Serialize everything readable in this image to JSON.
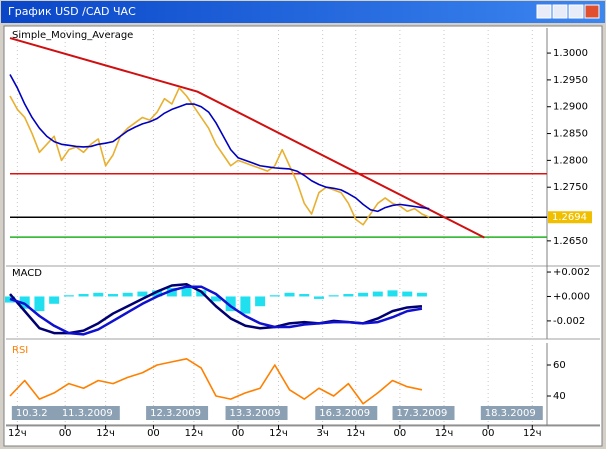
{
  "window": {
    "title": "График USD /CAD  ЧАС"
  },
  "chart_data": [
    {
      "type": "line",
      "title": "Simple_Moving_Average",
      "x": [
        0,
        2,
        4,
        6,
        8,
        10,
        12,
        14,
        16,
        18,
        20,
        22,
        24,
        26,
        28,
        30,
        32,
        34,
        36,
        38,
        40,
        42,
        44,
        46,
        48,
        50,
        52,
        54,
        56,
        58,
        60,
        62,
        64,
        66,
        68,
        70,
        72,
        74,
        76,
        78,
        80,
        82,
        84,
        86,
        88,
        90,
        92,
        94,
        96,
        98,
        100,
        102,
        104,
        106,
        108,
        110,
        112,
        114
      ],
      "series": [
        {
          "color": "#e8b030",
          "values": [
            1.292,
            1.2895,
            1.288,
            1.285,
            1.2815,
            1.283,
            1.2845,
            1.28,
            1.282,
            1.2825,
            1.2815,
            1.283,
            1.284,
            1.279,
            1.281,
            1.2845,
            1.286,
            1.287,
            1.288,
            1.2875,
            1.289,
            1.2915,
            1.2905,
            1.2935,
            1.292,
            1.29,
            1.288,
            1.286,
            1.283,
            1.281,
            1.279,
            1.28,
            1.2795,
            1.279,
            1.2785,
            1.278,
            1.279,
            1.282,
            1.279,
            1.276,
            1.272,
            1.27,
            1.274,
            1.275,
            1.2745,
            1.274,
            1.272,
            1.269,
            1.268,
            1.27,
            1.272,
            1.273,
            1.272,
            1.2715,
            1.2705,
            1.271,
            1.27,
            1.2694
          ]
        },
        {
          "color": "#0000c0",
          "values": [
            1.296,
            1.2935,
            1.2905,
            1.288,
            1.286,
            1.2845,
            1.2835,
            1.283,
            1.2828,
            1.2826,
            1.2825,
            1.2826,
            1.283,
            1.2832,
            1.2835,
            1.2845,
            1.2855,
            1.2862,
            1.2868,
            1.2872,
            1.2878,
            1.2888,
            1.2895,
            1.29,
            1.2905,
            1.2905,
            1.29,
            1.289,
            1.287,
            1.2845,
            1.282,
            1.2805,
            1.28,
            1.2795,
            1.279,
            1.2788,
            1.2786,
            1.2785,
            1.2784,
            1.278,
            1.2772,
            1.2762,
            1.2755,
            1.275,
            1.2748,
            1.2745,
            1.2738,
            1.273,
            1.2718,
            1.2708,
            1.2705,
            1.2712,
            1.2716,
            1.2718,
            1.2716,
            1.2714,
            1.2712,
            1.271
          ]
        }
      ],
      "lines": [
        {
          "color": "#d01010",
          "x": [
            0,
            51,
            129
          ],
          "values": [
            1.3028,
            1.2928,
            1.2656
          ]
        }
      ],
      "hlines": [
        {
          "value": 1.2775,
          "color": "#e01010"
        },
        {
          "value": 1.2657,
          "color": "#20b020"
        },
        {
          "value": 1.2694,
          "color": "#000000"
        }
      ],
      "current_price": 1.2694,
      "current_color": "#f0c000",
      "xlim": [
        0,
        146
      ],
      "ylim": [
        1.2605,
        1.3043
      ],
      "yticks": [
        {
          "value": 1.3,
          "label": "1.3000"
        },
        {
          "value": 1.295,
          "label": "1.2950"
        },
        {
          "value": 1.29,
          "label": "1.2900"
        },
        {
          "value": 1.285,
          "label": "1.2850"
        },
        {
          "value": 1.28,
          "label": "1.2800"
        },
        {
          "value": 1.275,
          "label": "1.2750"
        },
        {
          "value": 1.265,
          "label": "1.2650"
        }
      ]
    },
    {
      "type": "macd",
      "title": "MACD",
      "x": [
        0,
        4,
        8,
        12,
        16,
        20,
        24,
        28,
        32,
        36,
        40,
        44,
        48,
        52,
        56,
        60,
        64,
        68,
        72,
        76,
        80,
        84,
        88,
        92,
        96,
        100,
        104,
        108,
        112
      ],
      "series": [
        {
          "kind": "bar",
          "color": "#20e0f0",
          "values": [
            -0.0005,
            -0.001,
            -0.0012,
            -0.0006,
            0.0001,
            0.0002,
            0.0003,
            0.0002,
            0.0003,
            0.0004,
            0.0005,
            0.0007,
            0.0008,
            0.0005,
            -0.0004,
            -0.0012,
            -0.0014,
            -0.0008,
            0.0001,
            0.0003,
            0.0002,
            -0.0002,
            0.0001,
            0.0002,
            0.0003,
            0.0004,
            0.0005,
            0.0004,
            0.0003
          ]
        },
        {
          "kind": "line",
          "color": "#000070",
          "values": [
            0.0002,
            -0.0012,
            -0.0026,
            -0.003,
            -0.003,
            -0.0028,
            -0.0022,
            -0.0014,
            -0.0008,
            -0.0002,
            0.0004,
            0.0009,
            0.001,
            0.0004,
            -0.0008,
            -0.0018,
            -0.0024,
            -0.0026,
            -0.0025,
            -0.0022,
            -0.0021,
            -0.0022,
            -0.002,
            -0.0021,
            -0.0022,
            -0.0018,
            -0.0012,
            -0.0009,
            -0.0008
          ]
        },
        {
          "kind": "line",
          "color": "#1010d0",
          "values": [
            -0.0002,
            -0.0006,
            -0.0016,
            -0.0024,
            -0.003,
            -0.0031,
            -0.0027,
            -0.002,
            -0.0013,
            -0.0006,
            0.0,
            0.0005,
            0.0008,
            0.0008,
            0.0002,
            -0.0008,
            -0.0016,
            -0.0022,
            -0.0025,
            -0.0025,
            -0.0023,
            -0.0022,
            -0.0021,
            -0.0021,
            -0.0022,
            -0.0021,
            -0.0017,
            -0.0012,
            -0.001
          ]
        }
      ],
      "xlim": [
        0,
        146
      ],
      "ylim": [
        -0.0034,
        0.00233
      ],
      "yticks": [
        {
          "value": 0.002,
          "label": "+0.002"
        },
        {
          "value": 0,
          "label": "+0.000"
        },
        {
          "value": -0.002,
          "label": "-0.002"
        }
      ]
    },
    {
      "type": "line",
      "title": "RSI",
      "title_color": "#ff8000",
      "x": [
        0,
        4,
        8,
        12,
        16,
        20,
        24,
        28,
        32,
        36,
        40,
        44,
        48,
        52,
        56,
        60,
        64,
        68,
        72,
        76,
        80,
        84,
        88,
        92,
        96,
        100,
        104,
        108,
        112
      ],
      "series": [
        {
          "color": "#ff8000",
          "values": [
            40,
            50,
            38,
            42,
            48,
            45,
            50,
            48,
            52,
            55,
            60,
            62,
            64,
            58,
            40,
            38,
            42,
            45,
            60,
            44,
            38,
            45,
            40,
            48,
            35,
            42,
            50,
            46,
            44
          ]
        }
      ],
      "xlim": [
        0,
        146
      ],
      "ylim": [
        21.3,
        72.9
      ],
      "yticks": [
        60,
        40
      ],
      "xticks": [
        {
          "value": 2,
          "label": "12ч"
        },
        {
          "value": 15,
          "label": "00"
        },
        {
          "value": 26,
          "label": "12ч"
        },
        {
          "value": 39,
          "label": "00"
        },
        {
          "value": 50,
          "label": "12ч"
        },
        {
          "value": 62,
          "label": "00"
        },
        {
          "value": 73,
          "label": "12ч"
        },
        {
          "value": 85,
          "label": "3ч"
        },
        {
          "value": 94,
          "label": "12ч"
        },
        {
          "value": 106,
          "label": "00"
        },
        {
          "value": 118,
          "label": "12ч"
        },
        {
          "value": 130,
          "label": "00"
        },
        {
          "value": 142,
          "label": "12ч"
        }
      ],
      "date_labels": [
        {
          "value": 0.5,
          "label": "10.3.2"
        },
        {
          "value": 13,
          "label": "11.3.2009"
        },
        {
          "value": 37,
          "label": "12.3.2009"
        },
        {
          "value": 58.6,
          "label": "13.3.2009"
        },
        {
          "value": 83,
          "label": "16.3.2009"
        },
        {
          "value": 104,
          "label": "17.3.2009"
        },
        {
          "value": 128,
          "label": "18.3.2009"
        }
      ],
      "grid": true
    }
  ]
}
